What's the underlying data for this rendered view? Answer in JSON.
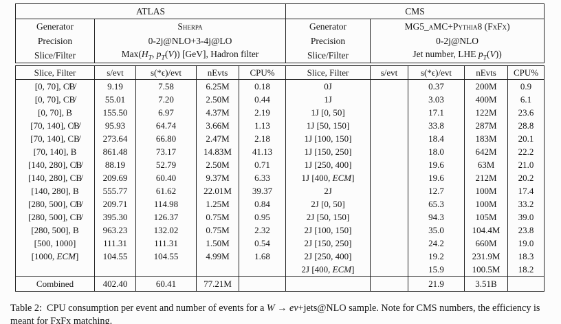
{
  "columns": {
    "slice_filter": "Slice, Filter",
    "s_evt": "s/evt",
    "s_eps_evt": "s(*ϵ)/evt",
    "nevts": "nEvts",
    "cpu": "CPU%"
  },
  "atlas": {
    "title": "ATLAS",
    "generator_label": "Generator",
    "generator_value_html": "<span class=\"sc\">Sherpa</span>",
    "precision_label": "Precision",
    "precision_value": "0-2j@NLO+3-4j@LO",
    "slice_label": "Slice/Filter",
    "slice_value_html": "Max(<i>H<sub>T</sub></i>, <i>p<sub>T</sub></i>(<i>V</i>)) [GeV], Hadron filter",
    "rows": [
      {
        "label": "[0, 70], C̸B̸",
        "s": "9.19",
        "se": "7.58",
        "n": "6.25M",
        "cpu": "0.18"
      },
      {
        "label": "[0, 70], CB̸",
        "s": "55.01",
        "se": "7.20",
        "n": "2.50M",
        "cpu": "0.44"
      },
      {
        "label": "[0, 70], B",
        "s": "155.50",
        "se": "6.97",
        "n": "4.37M",
        "cpu": "2.19"
      },
      {
        "label": "[70, 140], C̸B̸",
        "s": "95.93",
        "se": "64.74",
        "n": "3.66M",
        "cpu": "1.13"
      },
      {
        "label": "[70, 140], CB̸",
        "s": "273.64",
        "se": "66.80",
        "n": "2.47M",
        "cpu": "2.18"
      },
      {
        "label": "[70, 140], B",
        "s": "861.48",
        "se": "73.17",
        "n": "14.83M",
        "cpu": "41.13"
      },
      {
        "label": "[140, 280], C̸B̸",
        "s": "88.19",
        "se": "52.79",
        "n": "2.50M",
        "cpu": "0.71"
      },
      {
        "label": "[140, 280], CB̸",
        "s": "209.69",
        "se": "60.40",
        "n": "9.37M",
        "cpu": "6.33"
      },
      {
        "label": "[140, 280], B",
        "s": "555.77",
        "se": "61.62",
        "n": "22.01M",
        "cpu": "39.37"
      },
      {
        "label": "[280, 500], C̸B̸",
        "s": "209.71",
        "se": "114.98",
        "n": "1.25M",
        "cpu": "0.84"
      },
      {
        "label": "[280, 500], CB̸",
        "s": "395.30",
        "se": "126.37",
        "n": "0.75M",
        "cpu": "0.95"
      },
      {
        "label": "[280, 500], B",
        "s": "963.23",
        "se": "132.02",
        "n": "0.75M",
        "cpu": "2.32"
      },
      {
        "label": "[500, 1000]",
        "s": "111.31",
        "se": "111.31",
        "n": "1.50M",
        "cpu": "0.54"
      },
      {
        "label": "[1000, <i>ECM</i>]",
        "s": "104.55",
        "se": "104.55",
        "n": "4.99M",
        "cpu": "1.68"
      },
      {
        "label": "",
        "s": "",
        "se": "",
        "n": "",
        "cpu": ""
      }
    ],
    "combined": {
      "label": "Combined",
      "s": "402.40",
      "se": "60.41",
      "n": "77.21M",
      "cpu": ""
    }
  },
  "cms": {
    "title": "CMS",
    "generator_label": "Generator",
    "generator_value_html": "MG5_<span class=\"sc\">a</span>MC+<span class=\"sc\">Pythia</span>8 (<span class=\"sc\">FxFx</span>)",
    "precision_label": "Precision",
    "precision_value": "0-2j@NLO",
    "slice_label": "Slice/Filter",
    "slice_value_html": "Jet number, LHE <i>p<sub>T</sub></i>(<i>V</i>))",
    "rows": [
      {
        "label": "0J",
        "s": "",
        "se": "0.37",
        "n": "200M",
        "cpu": "0.9"
      },
      {
        "label": "1J",
        "s": "",
        "se": "3.03",
        "n": "400M",
        "cpu": "6.1"
      },
      {
        "label": "1J [0, 50]",
        "s": "",
        "se": "17.1",
        "n": "122M",
        "cpu": "23.6"
      },
      {
        "label": "1J [50, 150]",
        "s": "",
        "se": "33.8",
        "n": "287M",
        "cpu": "28.8"
      },
      {
        "label": "1J [100, 150]",
        "s": "",
        "se": "18.4",
        "n": "183M",
        "cpu": "20.1"
      },
      {
        "label": "1J [150, 250]",
        "s": "",
        "se": "18.0",
        "n": "642M",
        "cpu": "22.2"
      },
      {
        "label": "1J [250, 400]",
        "s": "",
        "se": "19.6",
        "n": "63M",
        "cpu": "21.0"
      },
      {
        "label": "1J [400, <i>ECM</i>]",
        "s": "",
        "se": "19.6",
        "n": "212M",
        "cpu": "20.2"
      },
      {
        "label": "2J",
        "s": "",
        "se": "12.7",
        "n": "100M",
        "cpu": "17.4"
      },
      {
        "label": "2J [0, 50]",
        "s": "",
        "se": "65.3",
        "n": "100M",
        "cpu": "33.2"
      },
      {
        "label": "2J [50, 150]",
        "s": "",
        "se": "94.3",
        "n": "105M",
        "cpu": "39.0"
      },
      {
        "label": "2J [100, 150]",
        "s": "",
        "se": "35.0",
        "n": "104.4M",
        "cpu": "23.8"
      },
      {
        "label": "2J [150, 250]",
        "s": "",
        "se": "24.2",
        "n": "660M",
        "cpu": "19.0"
      },
      {
        "label": "2J [250, 400]",
        "s": "",
        "se": "19.2",
        "n": "231.9M",
        "cpu": "18.3"
      },
      {
        "label": "2J [400, <i>ECM</i>]",
        "s": "",
        "se": "15.9",
        "n": "100.5M",
        "cpu": "18.2"
      }
    ],
    "combined": {
      "label": "",
      "s": "",
      "se": "21.9",
      "n": "3.51B",
      "cpu": ""
    }
  },
  "caption_html": "Table 2: &nbsp;CPU consumption per event and number of events for a <i>W</i> → <i>eν</i>+jets@NLO sample. Note for CMS numbers, the efficiency is meant for FxFx matching."
}
